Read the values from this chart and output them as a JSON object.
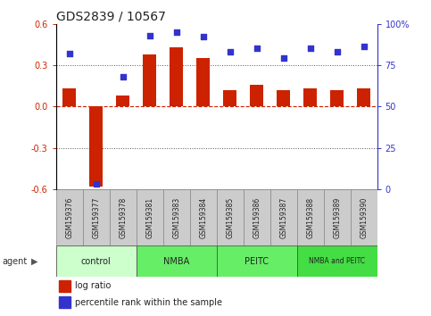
{
  "title": "GDS2839 / 10567",
  "samples": [
    "GSM159376",
    "GSM159377",
    "GSM159378",
    "GSM159381",
    "GSM159383",
    "GSM159384",
    "GSM159385",
    "GSM159386",
    "GSM159387",
    "GSM159388",
    "GSM159389",
    "GSM159390"
  ],
  "log_ratio": [
    0.13,
    -0.58,
    0.08,
    0.38,
    0.43,
    0.35,
    0.12,
    0.16,
    0.12,
    0.13,
    0.12,
    0.13
  ],
  "percentile_rank": [
    82,
    3,
    68,
    93,
    95,
    92,
    83,
    85,
    79,
    85,
    83,
    86
  ],
  "ylim_left": [
    -0.6,
    0.6
  ],
  "ylim_right": [
    0,
    100
  ],
  "yticks_left": [
    -0.6,
    -0.3,
    0.0,
    0.3,
    0.6
  ],
  "yticks_right": [
    0,
    25,
    50,
    75,
    100
  ],
  "ytick_labels_right": [
    "0",
    "25",
    "50",
    "75",
    "100%"
  ],
  "bar_color": "#cc2200",
  "dot_color": "#3333cc",
  "zero_line_color": "#cc2200",
  "hline_color": "#555555",
  "bg_color": "#ffffff",
  "groups": [
    {
      "label": "control",
      "start": 0,
      "end": 3,
      "color": "#ccffcc"
    },
    {
      "label": "NMBA",
      "start": 3,
      "end": 6,
      "color": "#66ee66"
    },
    {
      "label": "PEITC",
      "start": 6,
      "end": 9,
      "color": "#66ee66"
    },
    {
      "label": "NMBA and PEITC",
      "start": 9,
      "end": 12,
      "color": "#44dd44"
    }
  ],
  "legend_items": [
    {
      "label": "log ratio",
      "color": "#cc2200"
    },
    {
      "label": "percentile rank within the sample",
      "color": "#3333cc"
    }
  ],
  "title_fontsize": 10,
  "tick_fontsize": 7,
  "sample_fontsize": 5.5,
  "group_fontsize": 7,
  "legend_fontsize": 7,
  "bar_width": 0.5
}
